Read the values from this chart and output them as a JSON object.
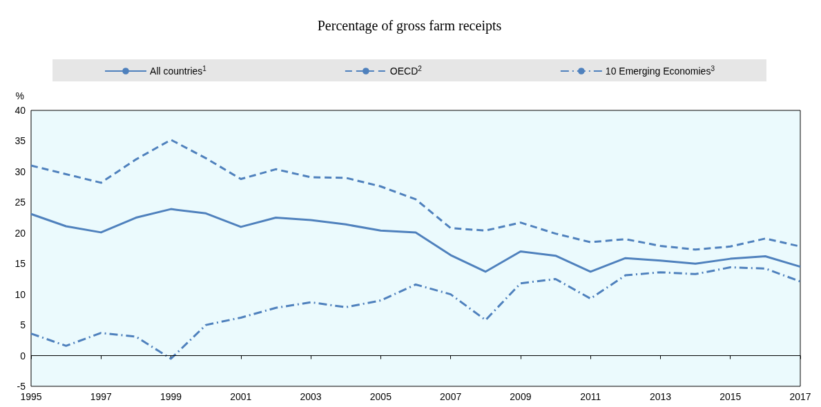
{
  "chart_data": {
    "type": "line",
    "title": "Percentage of gross farm receipts",
    "ylabel": "%",
    "x": [
      1995,
      1996,
      1997,
      1998,
      1999,
      2000,
      2001,
      2002,
      2003,
      2004,
      2005,
      2006,
      2007,
      2008,
      2009,
      2010,
      2011,
      2012,
      2013,
      2014,
      2015,
      2016,
      2017
    ],
    "series": [
      {
        "name": "All countries$^{1}$",
        "color": "#4f81bd",
        "line_style": "solid",
        "values": [
          23.1,
          21.1,
          20.1,
          22.5,
          23.9,
          23.2,
          21.0,
          22.5,
          22.1,
          21.4,
          20.4,
          20.1,
          16.4,
          13.7,
          17.0,
          16.3,
          13.7,
          15.9,
          15.5,
          15.0,
          15.8,
          16.2,
          14.5
        ]
      },
      {
        "name": "OECD$^{2}$",
        "color": "#4f81bd",
        "line_style": "dashed",
        "values": [
          31.0,
          29.6,
          28.2,
          32.0,
          35.2,
          32.2,
          28.8,
          30.4,
          29.1,
          29.0,
          27.6,
          25.5,
          20.8,
          20.4,
          21.7,
          19.9,
          18.5,
          19.0,
          17.9,
          17.3,
          17.8,
          19.1,
          17.8
        ]
      },
      {
        "name": "10 Emerging Economies$^{3}$",
        "color": "#4f81bd",
        "line_style": "dashdot",
        "values": [
          3.6,
          1.6,
          3.7,
          3.1,
          -0.5,
          5.0,
          6.2,
          7.8,
          8.7,
          7.9,
          9.0,
          11.6,
          10.0,
          5.8,
          11.8,
          12.5,
          9.3,
          13.1,
          13.6,
          13.3,
          14.4,
          14.2,
          12.1
        ]
      }
    ],
    "xlim": [
      1995,
      2017
    ],
    "xticks": [
      1995,
      1997,
      1999,
      2001,
      2003,
      2005,
      2007,
      2009,
      2011,
      2013,
      2015,
      2017
    ],
    "ylim": [
      -5,
      40
    ],
    "yticks": [
      -5,
      0,
      5,
      10,
      15,
      20,
      25,
      30,
      35,
      40
    ],
    "ref_lines": [
      {
        "axis": "y",
        "value": 0,
        "color": "#000000"
      }
    ],
    "grid": false,
    "legend": "top",
    "marker": "none"
  }
}
